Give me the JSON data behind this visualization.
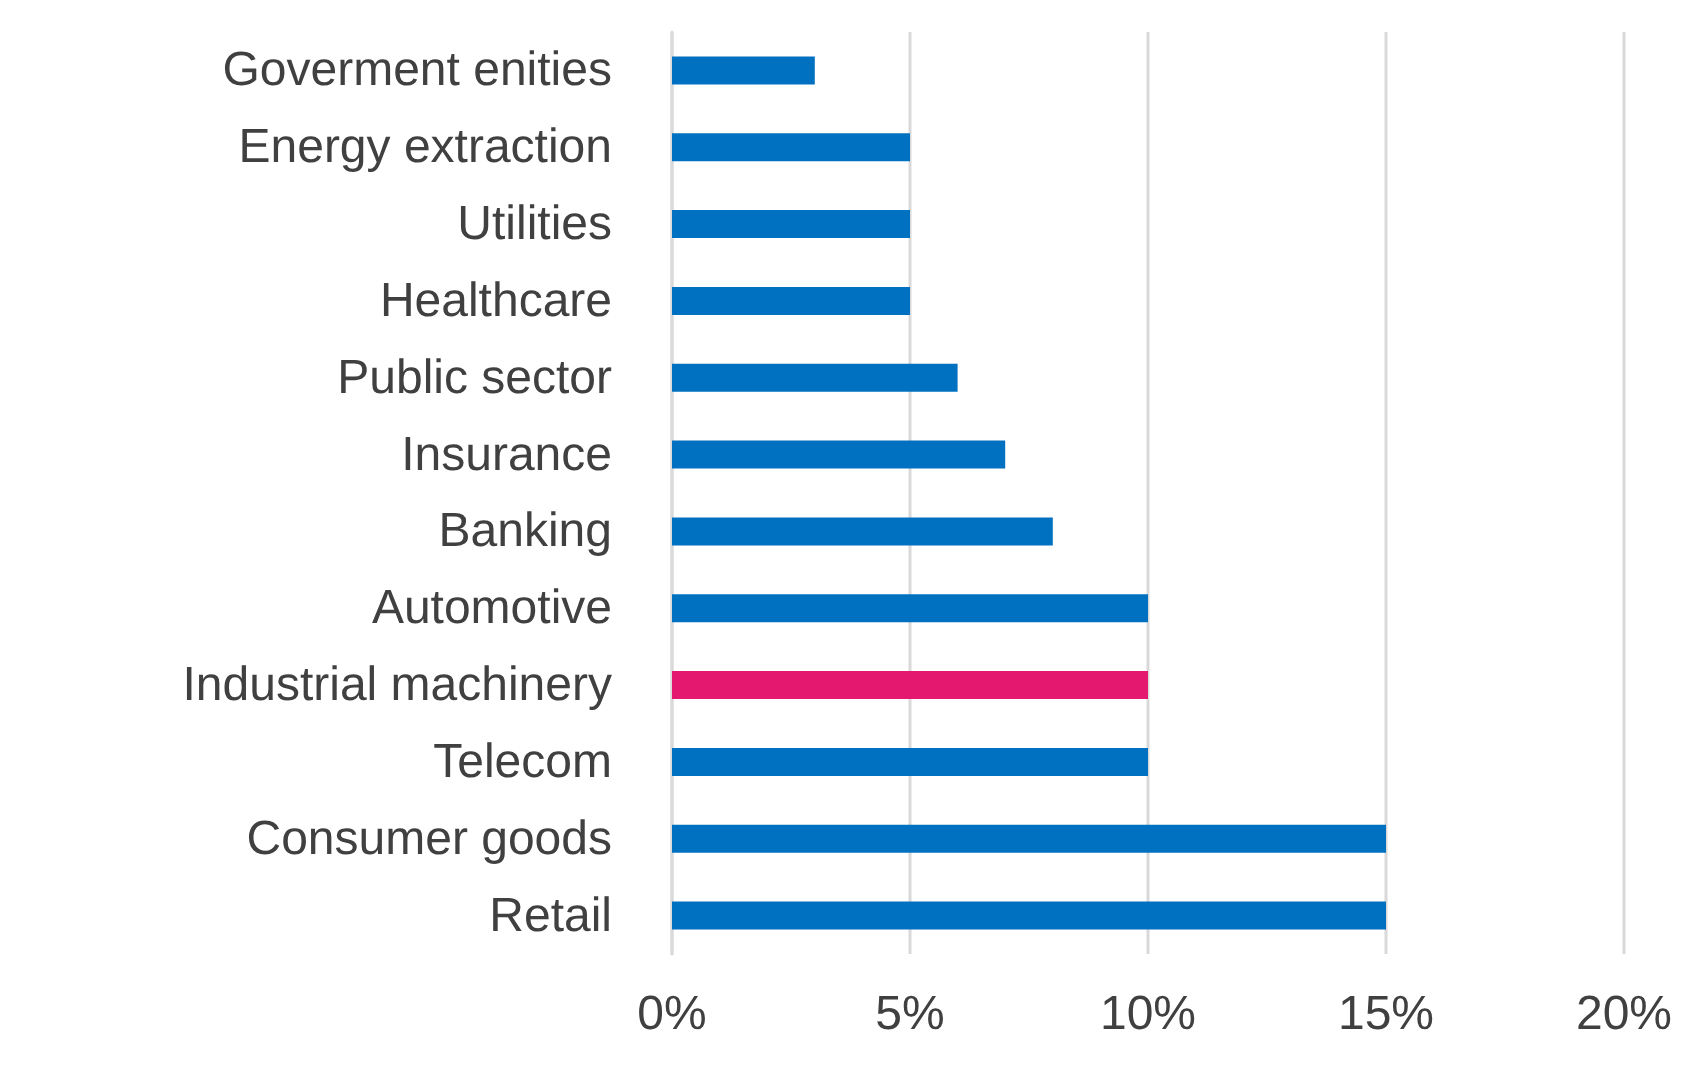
{
  "chart_data": {
    "type": "bar",
    "orientation": "horizontal",
    "categories": [
      "Goverment enities",
      "Energy extraction",
      "Utilities",
      "Healthcare",
      "Public sector",
      "Insurance",
      "Banking",
      "Automotive",
      "Industrial machinery",
      "Telecom",
      "Consumer goods",
      "Retail"
    ],
    "values": [
      3,
      5,
      5,
      5,
      6,
      7,
      8,
      10,
      10,
      10,
      15,
      15
    ],
    "colors": [
      "#0070c0",
      "#0070c0",
      "#0070c0",
      "#0070c0",
      "#0070c0",
      "#0070c0",
      "#0070c0",
      "#0070c0",
      "#e5186f",
      "#0070c0",
      "#0070c0",
      "#0070c0"
    ],
    "xlim": [
      0,
      20
    ],
    "xticks": [
      {
        "value": 0,
        "label": "0%"
      },
      {
        "value": 5,
        "label": "5%"
      },
      {
        "value": 10,
        "label": "10%"
      },
      {
        "value": 15,
        "label": "15%"
      },
      {
        "value": 20,
        "label": "20%"
      }
    ],
    "grid": "x"
  }
}
